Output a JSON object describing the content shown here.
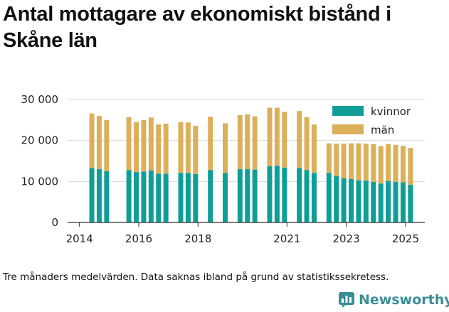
{
  "title": "Antal mottagare av ekonomiskt bistånd i Skåne län",
  "caption": "Tre månaders medelvärden. Data saknas ibland på grund av statistikssekretess.",
  "logo": {
    "text": "Newsworthy",
    "icon": "newsworthy-logo-icon"
  },
  "colors": {
    "kvinnor": "#0f9e97",
    "man": "#dcaf5b",
    "grid": "#d8d8d8",
    "text": "#222222"
  },
  "chart_data": {
    "type": "bar",
    "stacked": true,
    "ylim": [
      0,
      30000
    ],
    "yticks": [
      0,
      10000,
      20000,
      30000
    ],
    "ytick_labels": [
      "0",
      "10 000",
      "20 000",
      "30 000"
    ],
    "xticks": [
      2014,
      2016,
      2018,
      2021,
      2023,
      2025
    ],
    "xtick_labels": [
      "2014",
      "2016",
      "2018",
      "2021",
      "2023",
      "2025"
    ],
    "legend_position": "top-right",
    "grid": true,
    "series": [
      {
        "name": "kvinnor",
        "key": "kvinnor"
      },
      {
        "name": "män",
        "key": "man"
      }
    ],
    "points": [
      {
        "x": "2014-06",
        "kvinnor": 13300,
        "man": 13300
      },
      {
        "x": "2014-09",
        "kvinnor": 13000,
        "man": 13000
      },
      {
        "x": "2014-12",
        "kvinnor": 12500,
        "man": 12500
      },
      {
        "x": "2015-09",
        "kvinnor": 12800,
        "man": 12900
      },
      {
        "x": "2015-12",
        "kvinnor": 12300,
        "man": 12200
      },
      {
        "x": "2016-03",
        "kvinnor": 12400,
        "man": 12600
      },
      {
        "x": "2016-06",
        "kvinnor": 12700,
        "man": 12900
      },
      {
        "x": "2016-09",
        "kvinnor": 11900,
        "man": 12000
      },
      {
        "x": "2016-12",
        "kvinnor": 11900,
        "man": 12200
      },
      {
        "x": "2017-06",
        "kvinnor": 12100,
        "man": 12400
      },
      {
        "x": "2017-09",
        "kvinnor": 12100,
        "man": 12300
      },
      {
        "x": "2017-12",
        "kvinnor": 11800,
        "man": 11800
      },
      {
        "x": "2018-06",
        "kvinnor": 12800,
        "man": 13000
      },
      {
        "x": "2018-12",
        "kvinnor": 12100,
        "man": 12100
      },
      {
        "x": "2019-06",
        "kvinnor": 13000,
        "man": 13200
      },
      {
        "x": "2019-09",
        "kvinnor": 13000,
        "man": 13400
      },
      {
        "x": "2019-12",
        "kvinnor": 12900,
        "man": 13000
      },
      {
        "x": "2020-06",
        "kvinnor": 13700,
        "man": 14300
      },
      {
        "x": "2020-09",
        "kvinnor": 13800,
        "man": 14200
      },
      {
        "x": "2020-12",
        "kvinnor": 13400,
        "man": 13600
      },
      {
        "x": "2021-06",
        "kvinnor": 13300,
        "man": 13900
      },
      {
        "x": "2021-09",
        "kvinnor": 12800,
        "man": 12900
      },
      {
        "x": "2021-12",
        "kvinnor": 12100,
        "man": 11800
      },
      {
        "x": "2022-06",
        "kvinnor": 12100,
        "man": 7200
      },
      {
        "x": "2022-09",
        "kvinnor": 11400,
        "man": 7800
      },
      {
        "x": "2022-12",
        "kvinnor": 10800,
        "man": 8400
      },
      {
        "x": "2023-03",
        "kvinnor": 10600,
        "man": 8700
      },
      {
        "x": "2023-06",
        "kvinnor": 10300,
        "man": 9000
      },
      {
        "x": "2023-09",
        "kvinnor": 10200,
        "man": 9000
      },
      {
        "x": "2023-12",
        "kvinnor": 9900,
        "man": 9200
      },
      {
        "x": "2024-03",
        "kvinnor": 9500,
        "man": 9100
      },
      {
        "x": "2024-06",
        "kvinnor": 10100,
        "man": 9000
      },
      {
        "x": "2024-09",
        "kvinnor": 9900,
        "man": 9000
      },
      {
        "x": "2024-12",
        "kvinnor": 9800,
        "man": 8900
      },
      {
        "x": "2025-03",
        "kvinnor": 9200,
        "man": 9000
      }
    ]
  }
}
